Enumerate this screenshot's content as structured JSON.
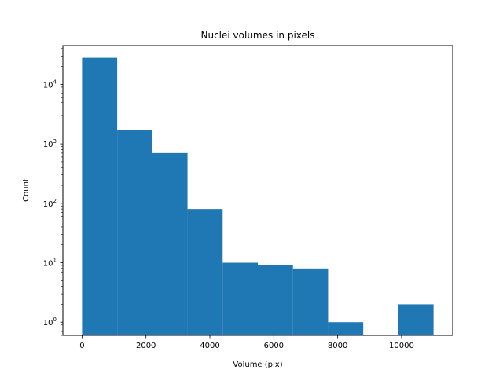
{
  "chart_data": {
    "type": "bar",
    "title": "Nuclei volumes in pixels",
    "xlabel": "Volume (pix)",
    "ylabel": "Count",
    "yscale": "log",
    "xlim": [
      -600,
      11600
    ],
    "ylim": [
      0.6,
      45000
    ],
    "grid": false,
    "legend": "none",
    "bar_color": "#1f77b4",
    "x_ticks": [
      0,
      2000,
      4000,
      6000,
      8000,
      10000
    ],
    "x_tick_labels": [
      "0",
      "2000",
      "4000",
      "6000",
      "8000",
      "10000"
    ],
    "y_ticks": [
      1,
      10,
      100,
      1000,
      10000
    ],
    "y_tick_labels": [
      "10^0",
      "10^1",
      "10^2",
      "10^3",
      "10^4"
    ],
    "bins": [
      {
        "x0": 0,
        "x1": 1100,
        "value": 28000
      },
      {
        "x0": 1100,
        "x1": 2200,
        "value": 1700
      },
      {
        "x0": 2200,
        "x1": 3300,
        "value": 700
      },
      {
        "x0": 3300,
        "x1": 4400,
        "value": 80
      },
      {
        "x0": 4400,
        "x1": 5500,
        "value": 10
      },
      {
        "x0": 5500,
        "x1": 6600,
        "value": 9
      },
      {
        "x0": 6600,
        "x1": 7700,
        "value": 8
      },
      {
        "x0": 7700,
        "x1": 8800,
        "value": 1
      },
      {
        "x0": 8800,
        "x1": 9900,
        "value": 0
      },
      {
        "x0": 9900,
        "x1": 11000,
        "value": 2
      }
    ]
  }
}
